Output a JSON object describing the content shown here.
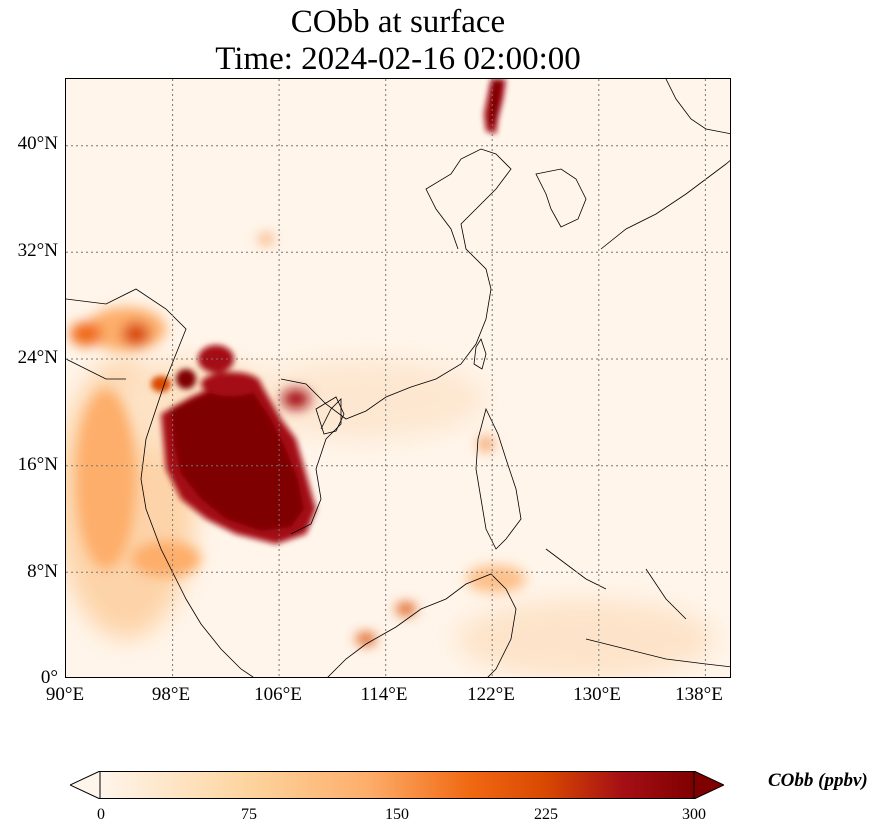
{
  "title": {
    "line1": "CObb at surface",
    "line2": "Time: 2024-02-16 02:00:00"
  },
  "map": {
    "projection": "PlateCarree",
    "lon_range": [
      90,
      140
    ],
    "lat_range": [
      0,
      45
    ],
    "gridlines": "dotted",
    "lat_ticks": [
      {
        "value": 40,
        "label": "40°N"
      },
      {
        "value": 32,
        "label": "32°N"
      },
      {
        "value": 24,
        "label": "24°N"
      },
      {
        "value": 16,
        "label": "16°N"
      },
      {
        "value": 8,
        "label": "8°N"
      },
      {
        "value": 0,
        "label": "0°"
      }
    ],
    "lon_ticks": [
      {
        "value": 90,
        "label": "90°E"
      },
      {
        "value": 98,
        "label": "98°E"
      },
      {
        "value": 106,
        "label": "106°E"
      },
      {
        "value": 114,
        "label": "114°E"
      },
      {
        "value": 122,
        "label": "122°E"
      },
      {
        "value": 130,
        "label": "130°E"
      },
      {
        "value": 138,
        "label": "138°E"
      }
    ],
    "hotspots": [
      {
        "region": "Mainland Southeast Asia (Thailand / Laos / Cambodia)",
        "level": "high"
      },
      {
        "region": "NE India / Myanmar border",
        "level": "moderate"
      },
      {
        "region": "Northeast China (near 42°N 122°E)",
        "level": "high"
      },
      {
        "region": "Borneo coast",
        "level": "moderate"
      }
    ]
  },
  "colorbar": {
    "label": "CObb (ppbv)",
    "min": 0,
    "max": 300,
    "extend": "both",
    "colormap": [
      "#fff5eb",
      "#fdd49e",
      "#fdae6b",
      "#f16913",
      "#d94801",
      "#a50f15",
      "#7f0000"
    ],
    "ticks": [
      {
        "value": 0,
        "label": "0"
      },
      {
        "value": 75,
        "label": "75"
      },
      {
        "value": 150,
        "label": "150"
      },
      {
        "value": 225,
        "label": "225"
      },
      {
        "value": 300,
        "label": "300"
      }
    ]
  }
}
